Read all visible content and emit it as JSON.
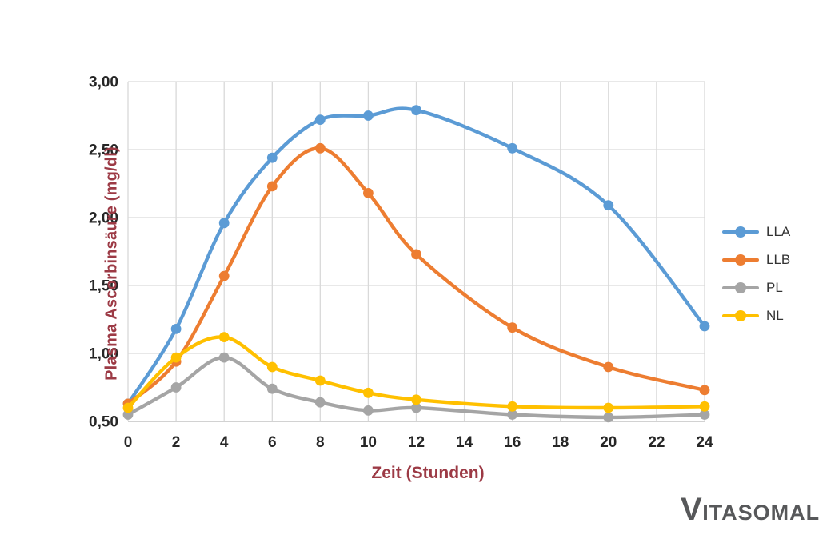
{
  "chart_data": {
    "type": "line",
    "title": "",
    "xlabel": "Zeit (Stunden)",
    "ylabel": "Plasma Ascorbinsäure (mg/dl)",
    "x": [
      0,
      2,
      4,
      6,
      8,
      10,
      12,
      16,
      20,
      24
    ],
    "series": [
      {
        "name": "LLA",
        "color": "#5B9BD5",
        "values": [
          0.63,
          1.18,
          1.96,
          2.44,
          2.72,
          2.75,
          2.79,
          2.51,
          2.09,
          1.2
        ]
      },
      {
        "name": "LLB",
        "color": "#ED7D31",
        "values": [
          0.63,
          0.94,
          1.57,
          2.23,
          2.51,
          2.18,
          1.73,
          1.19,
          0.9,
          0.73
        ]
      },
      {
        "name": "PL",
        "color": "#A5A5A5",
        "values": [
          0.55,
          0.75,
          0.97,
          0.74,
          0.64,
          0.58,
          0.6,
          0.55,
          0.53,
          0.55
        ]
      },
      {
        "name": "NL",
        "color": "#FFC000",
        "values": [
          0.6,
          0.97,
          1.12,
          0.9,
          0.8,
          0.71,
          0.66,
          0.61,
          0.6,
          0.61
        ]
      }
    ],
    "xlim": [
      0,
      24
    ],
    "ylim": [
      0.5,
      3.0
    ],
    "x_tick_values": [
      0,
      2,
      4,
      6,
      8,
      10,
      12,
      14,
      16,
      18,
      20,
      22,
      24
    ],
    "x_tick_labels": [
      "0",
      "2",
      "4",
      "6",
      "8",
      "10",
      "12",
      "14",
      "16",
      "18",
      "20",
      "22",
      "24"
    ],
    "y_tick_values": [
      0.5,
      1.0,
      1.5,
      2.0,
      2.5,
      3.0
    ],
    "y_tick_labels": [
      "0,50",
      "1,00",
      "1,50",
      "2,00",
      "2,50",
      "3,00"
    ],
    "grid": true,
    "legend_position": "right"
  },
  "branding": {
    "logo_initial": "V",
    "logo_rest": "ITASOMAL"
  },
  "colors": {
    "background": "#FFFFFF",
    "gridline": "#D9D9D9",
    "axis_line": "#C6C6C6",
    "tick_label": "#262626",
    "axis_title": "#9C3A45",
    "legend_label": "#333333",
    "logo": "#57585A"
  }
}
